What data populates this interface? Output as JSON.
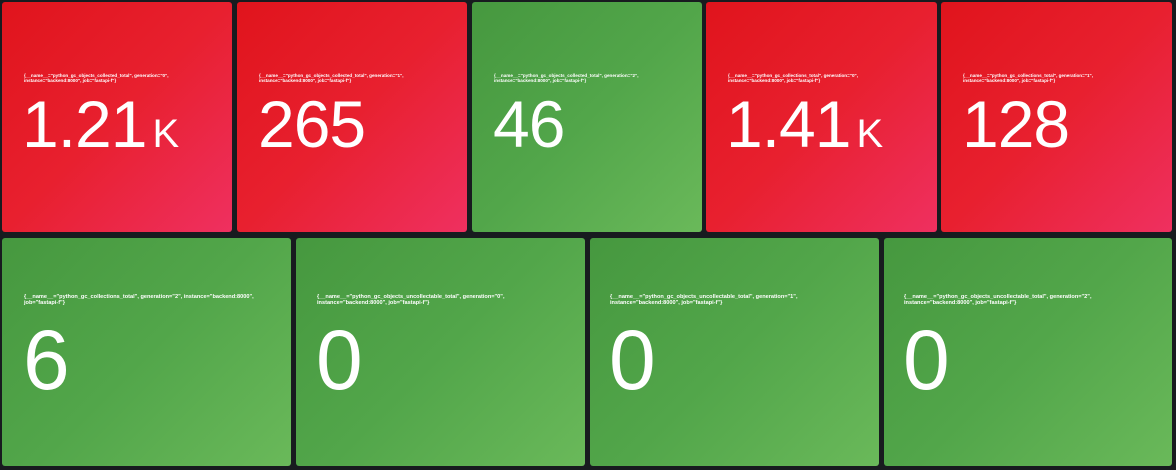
{
  "panels": [
    {
      "label": "{__name__=\"python_gc_objects_collected_total\", generation=\"0\", instance=\"backend:8000\", job=\"fastapi-f\"}",
      "value": "1.21",
      "unit": "K",
      "status": "red"
    },
    {
      "label": "{__name__=\"python_gc_objects_collected_total\", generation=\"1\", instance=\"backend:8000\", job=\"fastapi-f\"}",
      "value": "265",
      "unit": "",
      "status": "red"
    },
    {
      "label": "{__name__=\"python_gc_objects_collected_total\", generation=\"2\", instance=\"backend:8000\", job=\"fastapi-f\"}",
      "value": "46",
      "unit": "",
      "status": "green"
    },
    {
      "label": "{__name__=\"python_gc_collections_total\", generation=\"0\", instance=\"backend:8000\", job=\"fastapi-f\"}",
      "value": "1.41",
      "unit": "K",
      "status": "red"
    },
    {
      "label": "{__name__=\"python_gc_collections_total\", generation=\"1\", instance=\"backend:8000\", job=\"fastapi-f\"}",
      "value": "128",
      "unit": "",
      "status": "red"
    },
    {
      "label": "{__name__=\"python_gc_collections_total\", generation=\"2\", instance=\"backend:8000\", job=\"fastapi-f\"}",
      "value": "6",
      "unit": "",
      "status": "green"
    },
    {
      "label": "{__name__=\"python_gc_objects_uncollectable_total\", generation=\"0\", instance=\"backend:8000\", job=\"fastapi-f\"}",
      "value": "0",
      "unit": "",
      "status": "green"
    },
    {
      "label": "{__name__=\"python_gc_objects_uncollectable_total\", generation=\"1\", instance=\"backend:8000\", job=\"fastapi-f\"}",
      "value": "0",
      "unit": "",
      "status": "green"
    },
    {
      "label": "{__name__=\"python_gc_objects_uncollectable_total\", generation=\"2\", instance=\"backend:8000\", job=\"fastapi-f\"}",
      "value": "0",
      "unit": "",
      "status": "green"
    }
  ],
  "colors": {
    "red": "#e8202f",
    "green": "#52a64a",
    "background": "#181b1f"
  }
}
